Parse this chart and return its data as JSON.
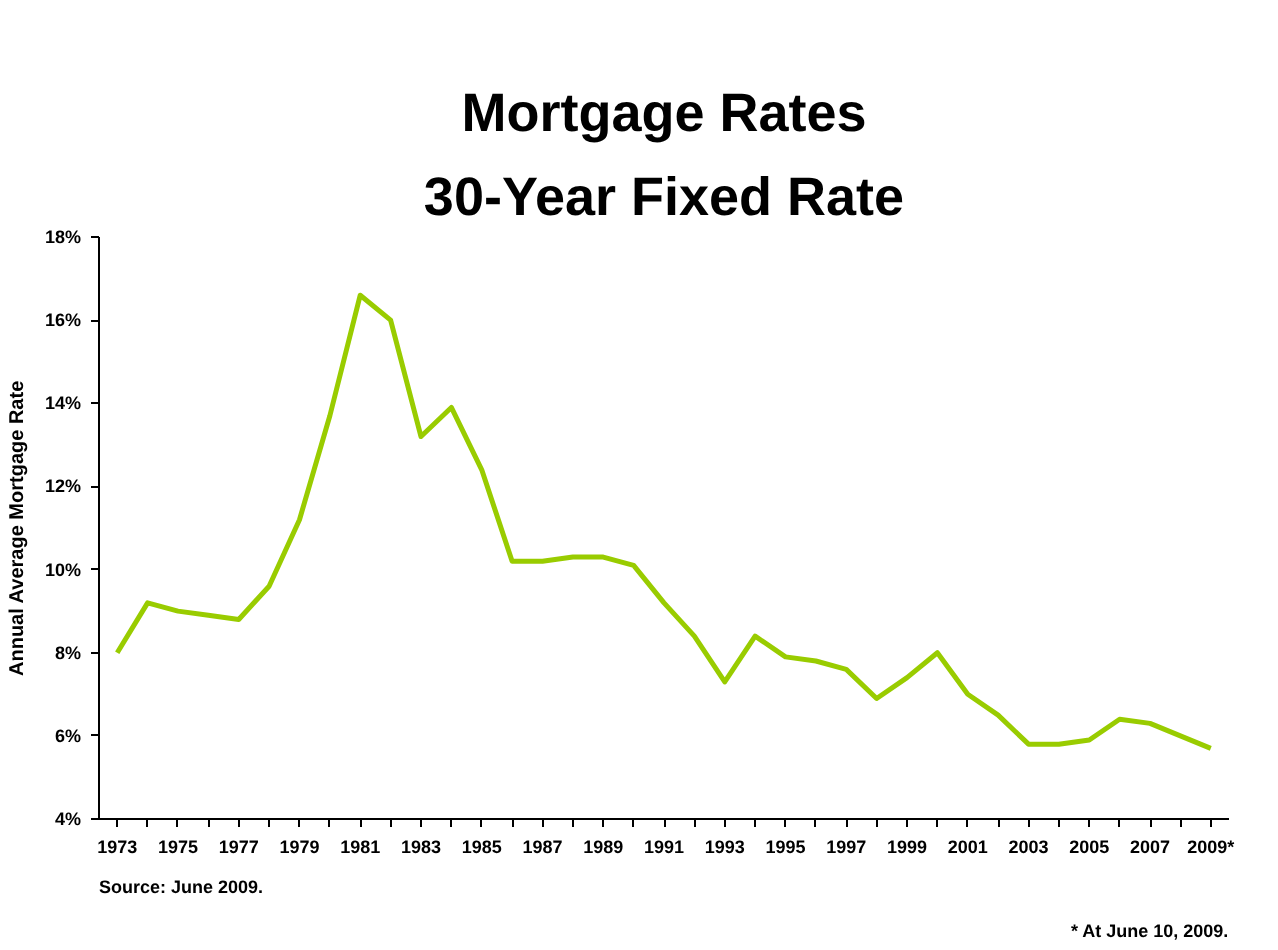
{
  "chart_data": {
    "type": "line",
    "title": "Mortgage Rates",
    "subtitle": "30-Year Fixed Rate",
    "ylabel": "Annual Average Mortgage Rate",
    "categories": [
      "1973",
      null,
      "1975",
      null,
      "1977",
      null,
      "1979",
      null,
      "1981",
      null,
      "1983",
      null,
      "1985",
      null,
      "1987",
      null,
      "1989",
      null,
      "1991",
      null,
      "1993",
      null,
      "1995",
      null,
      "1997",
      null,
      "1999",
      null,
      "2001",
      null,
      "2003",
      null,
      "2005",
      null,
      "2007",
      null,
      "2009*"
    ],
    "series": [
      {
        "color": "#99cc00",
        "values": [
          8.0,
          9.2,
          9.0,
          8.9,
          8.8,
          9.6,
          11.2,
          13.7,
          16.6,
          16.0,
          13.2,
          13.9,
          12.4,
          10.2,
          10.2,
          10.3,
          10.3,
          10.1,
          9.2,
          8.4,
          7.3,
          8.4,
          7.9,
          7.8,
          7.6,
          6.9,
          7.4,
          8.0,
          7.0,
          6.5,
          5.8,
          5.8,
          5.9,
          6.4,
          6.3,
          6.0,
          5.7
        ]
      }
    ],
    "ylim": [
      4,
      18
    ],
    "yticks": [
      {
        "value": 4,
        "label": "4%"
      },
      {
        "value": 6,
        "label": "6%"
      },
      {
        "value": 8,
        "label": "8%"
      },
      {
        "value": 10,
        "label": "10%"
      },
      {
        "value": 12,
        "label": "12%"
      },
      {
        "value": 14,
        "label": "14%"
      },
      {
        "value": 16,
        "label": "16%"
      },
      {
        "value": 18,
        "label": "18%"
      }
    ],
    "grid": false,
    "marker": "none",
    "line_style": "solid",
    "annotations": [
      "Source: June 2009.",
      "* At June 10, 2009."
    ]
  }
}
